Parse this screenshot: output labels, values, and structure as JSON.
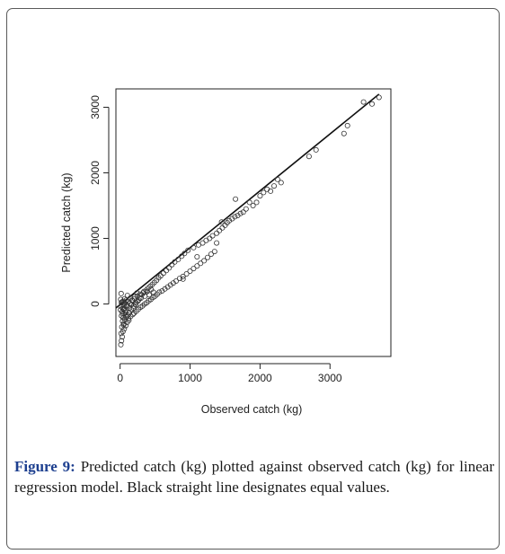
{
  "caption": {
    "label": "Figure 9:",
    "text": "Predicted catch (kg) plotted against observed catch (kg) for linear regression model. Black straight line designates equal values."
  },
  "colors": {
    "frame": "#5a5a5a",
    "caption_label": "#1d3f8f",
    "ink": "#222222"
  },
  "chart_data": {
    "type": "scatter",
    "title": "",
    "xlabel": "Observed catch (kg)",
    "ylabel": "Predicted catch (kg)",
    "xlim": [
      -60,
      3870
    ],
    "ylim": [
      -800,
      3280
    ],
    "xticks": [
      0,
      1000,
      2000,
      3000
    ],
    "yticks": [
      0,
      1000,
      2000,
      3000
    ],
    "grid": false,
    "legend": "none",
    "marker": "open-circle",
    "reference_line": {
      "label": "equal values",
      "from": [
        -60,
        -60
      ],
      "to": [
        3700,
        3200
      ]
    },
    "points": [
      [
        10,
        -620
      ],
      [
        20,
        -560
      ],
      [
        30,
        -500
      ],
      [
        15,
        -450
      ],
      [
        40,
        -420
      ],
      [
        60,
        -380
      ],
      [
        25,
        -350
      ],
      [
        80,
        -330
      ],
      [
        50,
        -300
      ],
      [
        100,
        -280
      ],
      [
        35,
        -260
      ],
      [
        70,
        -240
      ],
      [
        120,
        -220
      ],
      [
        45,
        -210
      ],
      [
        90,
        -200
      ],
      [
        150,
        -190
      ],
      [
        20,
        -180
      ],
      [
        110,
        -170
      ],
      [
        180,
        -160
      ],
      [
        60,
        -150
      ],
      [
        200,
        -140
      ],
      [
        130,
        -130
      ],
      [
        30,
        -120
      ],
      [
        230,
        -110
      ],
      [
        75,
        -100
      ],
      [
        160,
        -90
      ],
      [
        260,
        -80
      ],
      [
        40,
        -70
      ],
      [
        190,
        -60
      ],
      [
        290,
        -50
      ],
      [
        95,
        -40
      ],
      [
        320,
        -30
      ],
      [
        55,
        -20
      ],
      [
        220,
        -10
      ],
      [
        350,
        0
      ],
      [
        140,
        10
      ],
      [
        380,
        20
      ],
      [
        25,
        30
      ],
      [
        250,
        40
      ],
      [
        410,
        50
      ],
      [
        170,
        60
      ],
      [
        440,
        70
      ],
      [
        65,
        80
      ],
      [
        280,
        90
      ],
      [
        470,
        100
      ],
      [
        210,
        110
      ],
      [
        500,
        120
      ],
      [
        105,
        130
      ],
      [
        310,
        140
      ],
      [
        530,
        150
      ],
      [
        15,
        160
      ],
      [
        240,
        170
      ],
      [
        560,
        180
      ],
      [
        340,
        190
      ],
      [
        125,
        -250
      ],
      [
        600,
        200
      ],
      [
        370,
        210
      ],
      [
        50,
        -320
      ],
      [
        640,
        230
      ],
      [
        400,
        240
      ],
      [
        680,
        260
      ],
      [
        430,
        270
      ],
      [
        720,
        290
      ],
      [
        460,
        300
      ],
      [
        760,
        320
      ],
      [
        490,
        330
      ],
      [
        800,
        350
      ],
      [
        520,
        360
      ],
      [
        850,
        390
      ],
      [
        550,
        400
      ],
      [
        900,
        420
      ],
      [
        580,
        430
      ],
      [
        950,
        460
      ],
      [
        620,
        470
      ],
      [
        1000,
        500
      ],
      [
        660,
        510
      ],
      [
        1050,
        540
      ],
      [
        700,
        550
      ],
      [
        1100,
        580
      ],
      [
        740,
        600
      ],
      [
        1150,
        620
      ],
      [
        780,
        640
      ],
      [
        1200,
        660
      ],
      [
        830,
        680
      ],
      [
        1250,
        710
      ],
      [
        880,
        730
      ],
      [
        1300,
        760
      ],
      [
        920,
        770
      ],
      [
        1350,
        800
      ],
      [
        970,
        820
      ],
      [
        1050,
        860
      ],
      [
        1120,
        900
      ],
      [
        1180,
        930
      ],
      [
        1230,
        970
      ],
      [
        1280,
        1000
      ],
      [
        1320,
        1040
      ],
      [
        1380,
        1080
      ],
      [
        1420,
        1120
      ],
      [
        1460,
        1160
      ],
      [
        1500,
        1200
      ],
      [
        1530,
        1240
      ],
      [
        1560,
        1270
      ],
      [
        1600,
        1300
      ],
      [
        1640,
        1330
      ],
      [
        1680,
        1350
      ],
      [
        1720,
        1380
      ],
      [
        1760,
        1400
      ],
      [
        1800,
        1450
      ],
      [
        1450,
        1250
      ],
      [
        1380,
        930
      ],
      [
        1900,
        1500
      ],
      [
        1950,
        1550
      ],
      [
        2000,
        1650
      ],
      [
        2050,
        1700
      ],
      [
        2100,
        1750
      ],
      [
        2150,
        1720
      ],
      [
        2200,
        1800
      ],
      [
        2300,
        1850
      ],
      [
        2250,
        1900
      ],
      [
        1850,
        1550
      ],
      [
        2700,
        2250
      ],
      [
        2800,
        2350
      ],
      [
        3200,
        2600
      ],
      [
        3250,
        2720
      ],
      [
        3480,
        3080
      ],
      [
        3600,
        3050
      ],
      [
        3700,
        3150
      ],
      [
        1650,
        1600
      ],
      [
        1100,
        720
      ],
      [
        900,
        380
      ],
      [
        5,
        -90
      ],
      [
        12,
        -40
      ],
      [
        18,
        20
      ],
      [
        8,
        70
      ],
      [
        35,
        -150
      ],
      [
        28,
        -10
      ],
      [
        42,
        40
      ],
      [
        55,
        -80
      ],
      [
        68,
        10
      ],
      [
        80,
        -130
      ],
      [
        88,
        60
      ],
      [
        102,
        -20
      ],
      [
        115,
        30
      ],
      [
        130,
        -60
      ],
      [
        145,
        90
      ],
      [
        160,
        -10
      ],
      [
        175,
        50
      ],
      [
        195,
        -30
      ],
      [
        210,
        80
      ],
      [
        225,
        20
      ],
      [
        245,
        120
      ],
      [
        265,
        60
      ],
      [
        285,
        150
      ],
      [
        300,
        90
      ],
      [
        330,
        170
      ],
      [
        355,
        120
      ],
      [
        385,
        190
      ],
      [
        415,
        140
      ],
      [
        445,
        220
      ],
      [
        475,
        180
      ]
    ]
  }
}
